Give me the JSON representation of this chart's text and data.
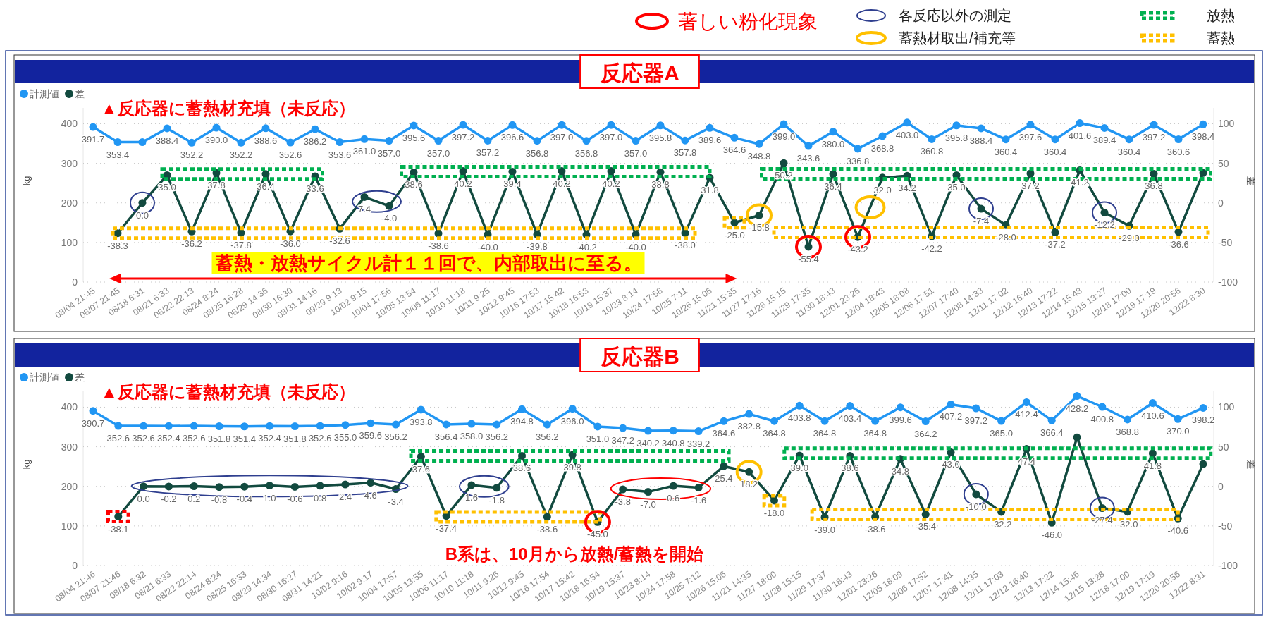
{
  "chart_data": [
    {
      "type": "line",
      "title": "反応器A",
      "subtitle": "▲反応器に蓄熱材充填（未反応）",
      "categories": [
        "08/04 21:45",
        "08/07 21:45",
        "08/18 6:31",
        "08/21 6:33",
        "08/22 22:13",
        "08/24 8:24",
        "08/25 16:28",
        "08/29 14:36",
        "08/30 16:30",
        "08/31 14:16",
        "09/29 9:13",
        "10/02 9:15",
        "10/04 17:56",
        "10/05 13:54",
        "10/06 11:17",
        "10/10 11:18",
        "10/11 9:25",
        "10/12 9:45",
        "10/16 17:53",
        "10/17 15:42",
        "10/18 16:53",
        "10/19 15:37",
        "10/23 8:14",
        "10/24 17:58",
        "10/25 7:11",
        "10/26 15:06",
        "11/21 15:35",
        "11/27 17:16",
        "11/28 15:15",
        "11/29 17:35",
        "11/30 18:43",
        "12/01 23:26",
        "12/04 18:43",
        "12/05 18:08",
        "12/06 17:51",
        "12/07 17:40",
        "12/08 14:33",
        "12/11 17:02",
        "12/12 16:40",
        "12/13 17:22",
        "12/14 15:48",
        "12/15 13:27",
        "12/18 17:00",
        "12/19 17:19",
        "12/20 20:56",
        "12/22 8:30"
      ],
      "series": [
        {
          "name": "計測値",
          "color": "#2196f3",
          "values": [
            391.7,
            353.4,
            353.4,
            388.4,
            352.2,
            390.0,
            352.2,
            388.6,
            352.6,
            386.2,
            353.6,
            361.0,
            357.0,
            395.6,
            357.0,
            397.2,
            357.2,
            396.6,
            356.8,
            397.0,
            356.8,
            397.0,
            357.0,
            395.8,
            357.8,
            389.6,
            364.6,
            348.8,
            399.0,
            343.6,
            380.0,
            336.8,
            368.8,
            403.0,
            360.8,
            395.8,
            388.4,
            360.4,
            397.6,
            360.4,
            401.6,
            389.4,
            360.4,
            397.2,
            360.6,
            398.4
          ],
          "value_labels": [
            "391.7",
            "353.4",
            null,
            "388.4",
            "352.2",
            "390.0",
            "352.2",
            "388.6",
            "352.6",
            "386.2",
            "353.6",
            "361.0",
            "357.0",
            "395.6",
            "357.0",
            "397.2",
            "357.2",
            "396.6",
            "356.8",
            "397.0",
            "356.8",
            "397.0",
            "357.0",
            "395.8",
            "357.8",
            "389.6",
            "364.6",
            "348.8",
            "399.0",
            "343.6",
            "380.0",
            "336.8",
            "368.8",
            "403.0",
            "360.8",
            "395.8",
            "388.4",
            "360.4",
            "397.6",
            "360.4",
            "401.6",
            "389.4",
            "360.4",
            "397.2",
            "360.6",
            "398.4"
          ]
        },
        {
          "name": "差",
          "color": "#124a3f",
          "axis": "y2",
          "values": [
            null,
            -38.3,
            0.0,
            35.0,
            -36.2,
            37.8,
            -37.8,
            36.4,
            -36.0,
            33.6,
            -32.6,
            7.4,
            -4.0,
            38.6,
            -38.6,
            40.2,
            -40.0,
            39.4,
            -39.8,
            40.2,
            -40.2,
            40.2,
            -40.0,
            38.8,
            -38.0,
            31.8,
            -25.0,
            -15.8,
            50.2,
            -55.4,
            36.4,
            -43.2,
            32.0,
            34.2,
            -42.2,
            35.0,
            -7.4,
            -28.0,
            37.2,
            -37.2,
            41.2,
            -12.2,
            -29.0,
            36.8,
            -36.6,
            37.8
          ],
          "value_labels": [
            null,
            "-38.3",
            "0.0",
            "35.0",
            "-36.2",
            "37.8",
            "-37.8",
            "36.4",
            "-36.0",
            "33.6",
            "-32.6",
            "7.4",
            "-4.0",
            "38.6",
            "-38.6",
            "40.2",
            "-40.0",
            "39.4",
            "-39.8",
            "40.2",
            "-40.2",
            "40.2",
            "-40.0",
            "38.8",
            "-38.0",
            "31.8",
            "-25.0",
            "-15.8",
            "50.2",
            "-55.4",
            "36.4",
            "-43.2",
            "32.0",
            "34.2",
            "-42.2",
            "35.0",
            "-7.4",
            "-28.0",
            "37.2",
            "-37.2",
            "41.2",
            "-12.2",
            "-29.0",
            "36.8",
            "-36.6",
            null
          ]
        }
      ],
      "ylabel": "kg",
      "y2label": "差",
      "ylim": [
        0,
        440
      ],
      "yticks": [
        0,
        100,
        200,
        300,
        400
      ],
      "y2lim": [
        -100,
        120
      ],
      "y2ticks": [
        -100,
        -50,
        0,
        50,
        100
      ],
      "grid": "y",
      "legend": "top left",
      "marker": "circle",
      "line_style": "solid",
      "annotations": [
        "蓄熱・放熱サイクル計１１回で、内部取出に至る。",
        "著しい粉化現象",
        "各反応以外の測定",
        "蓄熱材取出/補充等",
        "放熱",
        "蓄熱"
      ]
    },
    {
      "type": "line",
      "title": "反応器B",
      "subtitle": "▲反応器に蓄熱材充填（未反応）",
      "categories": [
        "08/04 21:46",
        "08/07 21:46",
        "08/18 6:32",
        "08/21 6:33",
        "08/22 22:14",
        "08/24 8:24",
        "08/25 16:33",
        "08/29 14:34",
        "08/30 16:27",
        "08/31 14:21",
        "10/02 9:16",
        "10/02 9:17",
        "10/04 17:57",
        "10/05 13:55",
        "10/06 11:17",
        "10/10 11:18",
        "10/11 9:26",
        "10/12 9:45",
        "10/16 17:54",
        "10/17 15:42",
        "10/18 16:54",
        "10/19 15:37",
        "10/23 8:14",
        "10/24 17:58",
        "10/25 7:12",
        "10/26 15:06",
        "11/21 14:35",
        "11/27 18:00",
        "11/28 15:15",
        "11/29 17:37",
        "11/30 18:43",
        "12/01 23:26",
        "12/05 18:09",
        "12/06 17:52",
        "12/07 17:41",
        "12/08 14:35",
        "12/11 17:03",
        "12/12 16:40",
        "12/13 17:22",
        "12/14 15:46",
        "12/15 13:28",
        "12/18 17:00",
        "12/19 17:19",
        "12/20 20:56",
        "12/22 8:31"
      ],
      "series": [
        {
          "name": "計測値",
          "color": "#2196f3",
          "values": [
            390.7,
            352.6,
            352.6,
            352.4,
            352.6,
            351.8,
            351.4,
            352.4,
            351.8,
            352.6,
            355.0,
            359.6,
            356.2,
            393.8,
            356.4,
            358.0,
            356.2,
            394.8,
            356.2,
            396.0,
            351.0,
            347.2,
            340.2,
            340.8,
            339.2,
            364.6,
            382.8,
            364.8,
            403.8,
            364.8,
            403.4,
            364.8,
            399.6,
            364.2,
            407.2,
            397.2,
            365.0,
            412.4,
            366.4,
            428.2,
            400.8,
            368.8,
            410.6,
            370.0,
            398.2
          ],
          "value_labels": [
            "390.7",
            "352.6",
            "352.6",
            "352.4",
            "352.6",
            "351.8",
            "351.4",
            "352.4",
            "351.8",
            "352.6",
            "355.0",
            "359.6",
            "356.2",
            "393.8",
            "356.4",
            "358.0",
            "356.2",
            "394.8",
            "356.2",
            "396.0",
            "351.0",
            "347.2",
            "340.2",
            "340.8",
            "339.2",
            "364.6",
            "382.8",
            "364.8",
            "403.8",
            "364.8",
            "403.4",
            "364.8",
            "399.6",
            "364.2",
            "407.2",
            "397.2",
            "365.0",
            "412.4",
            "366.4",
            "428.2",
            "400.8",
            "368.8",
            "410.6",
            "370.0",
            "398.2"
          ]
        },
        {
          "name": "差",
          "color": "#124a3f",
          "axis": "y2",
          "values": [
            null,
            -38.1,
            0.0,
            -0.2,
            0.2,
            -0.8,
            -0.4,
            1.0,
            -0.6,
            0.8,
            2.4,
            4.6,
            -3.4,
            37.6,
            -37.4,
            1.6,
            -1.8,
            38.6,
            -38.6,
            39.8,
            -45.0,
            -3.8,
            -7.0,
            0.6,
            -1.6,
            25.4,
            18.2,
            -18.0,
            39.0,
            -39.0,
            38.6,
            -38.6,
            34.8,
            -35.4,
            43.0,
            -10.0,
            -32.2,
            47.4,
            -46.0,
            61.8,
            -27.4,
            -32.0,
            41.8,
            -40.6,
            28.2
          ],
          "value_labels": [
            null,
            "-38.1",
            "0.0",
            "-0.2",
            "0.2",
            "-0.8",
            "-0.4",
            "1.0",
            "-0.6",
            "0.8",
            "2.4",
            "4.6",
            "-3.4",
            "37.6",
            "-37.4",
            "1.6",
            "-1.8",
            "38.6",
            "-38.6",
            "39.8",
            "-45.0",
            "-3.8",
            "-7.0",
            "0.6",
            "-1.6",
            "25.4",
            "18.2",
            "-18.0",
            "39.0",
            "-39.0",
            "38.6",
            "-38.6",
            "34.8",
            "-35.4",
            "43.0",
            "-10.0",
            "-32.2",
            "47.4",
            "-46.0",
            null,
            "-27.4",
            "-32.0",
            "41.8",
            "-40.6",
            null
          ]
        }
      ],
      "ylabel": "kg",
      "y2label": "差",
      "ylim": [
        0,
        440
      ],
      "yticks": [
        0,
        100,
        200,
        300,
        400
      ],
      "y2lim": [
        -100,
        120
      ],
      "y2ticks": [
        -100,
        -50,
        0,
        50,
        100
      ],
      "grid": "y",
      "legend": "top left",
      "marker": "circle",
      "line_style": "solid",
      "annotations": [
        "B系は、10月から放熱/蓄熱を開始"
      ]
    }
  ]
}
